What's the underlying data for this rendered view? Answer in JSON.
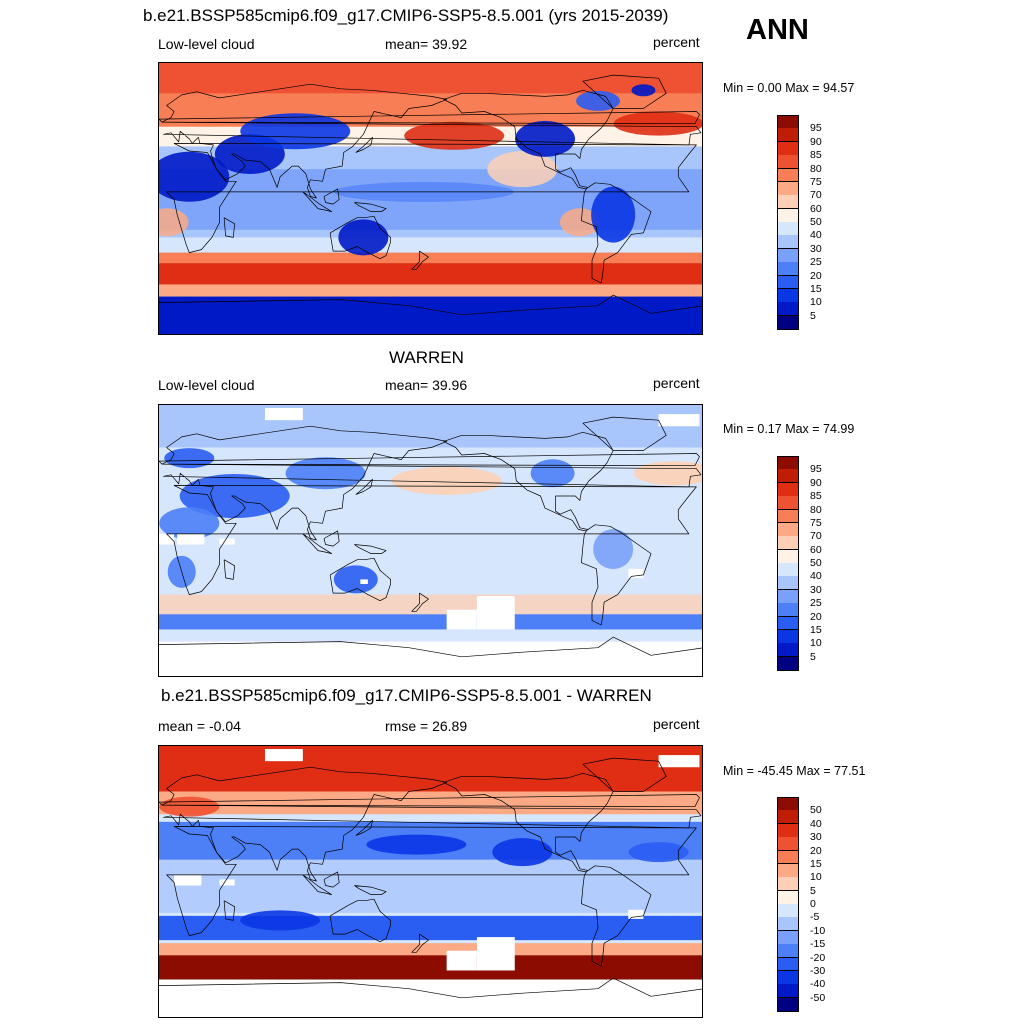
{
  "header": {
    "title": "b.e21.BSSP585cmip6.f09_g17.CMIP6-SSP5-8.5.001 (yrs 2015-2039)",
    "season": "ANN"
  },
  "colors": {
    "abs_scale": [
      "#000080",
      "#0019c6",
      "#0a36e4",
      "#2a5df2",
      "#4d7ff7",
      "#7aa1fa",
      "#a9c6fc",
      "#d6e6fd",
      "#fff2e6",
      "#fdd0b5",
      "#fca985",
      "#f87e56",
      "#ef5232",
      "#df2e14",
      "#bf1d06",
      "#8c0c02"
    ],
    "diff_scale": [
      "#000080",
      "#0019c6",
      "#0a36e4",
      "#2a5df2",
      "#4d7ff7",
      "#7aa1fa",
      "#a9c6fc",
      "#d6e6fd",
      "#fff2e6",
      "#fdd0b5",
      "#fca985",
      "#f87e56",
      "#ef5232",
      "#df2e14",
      "#bf1d06",
      "#8c0c02"
    ],
    "land_outline": "#000000",
    "missing": "#ffffff"
  },
  "panels": [
    {
      "title": "",
      "left_label": "Low-level cloud",
      "center_label": "mean=  39.92",
      "right_label": "percent",
      "minmax": "Min =    0.00 Max =  94.57"
    },
    {
      "title": "WARREN",
      "left_label": "Low-level cloud",
      "center_label": "mean=  39.96",
      "right_label": "percent",
      "minmax": "Min =    0.17 Max =  74.99"
    },
    {
      "title": "b.e21.BSSP585cmip6.f09_g17.CMIP6-SSP5-8.5.001 - WARREN",
      "left_label": "mean =  -0.04",
      "center_label": "rmse =  26.89",
      "right_label": "percent",
      "minmax": "Min = -45.45 Max =  77.51"
    }
  ],
  "colorbars": {
    "abs_levels": [
      "95",
      "90",
      "85",
      "80",
      "75",
      "70",
      "60",
      "50",
      "40",
      "30",
      "25",
      "20",
      "15",
      "10",
      "5"
    ],
    "diff_levels": [
      "50",
      "40",
      "30",
      "20",
      "15",
      "10",
      "5",
      "0",
      "-5",
      "-10",
      "-15",
      "-20",
      "-30",
      "-40",
      "-50"
    ]
  }
}
